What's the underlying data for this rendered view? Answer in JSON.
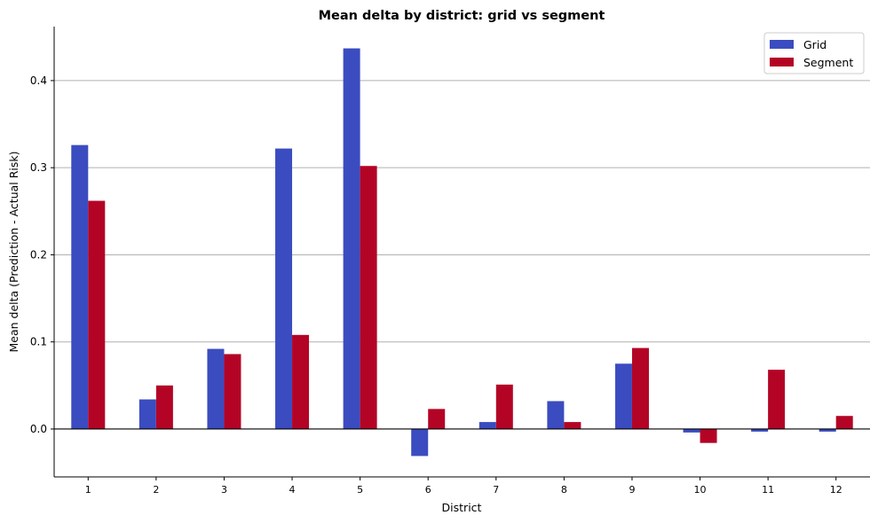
{
  "chart_data": {
    "type": "bar",
    "title": "Mean delta by district: grid vs segment",
    "xlabel": "District",
    "ylabel": "Mean delta (Prediction - Actual Risk)",
    "categories": [
      "1",
      "2",
      "3",
      "4",
      "5",
      "6",
      "7",
      "8",
      "9",
      "10",
      "11",
      "12"
    ],
    "series": [
      {
        "name": "Grid",
        "color": "#3b4cc0",
        "values": [
          0.326,
          0.034,
          0.092,
          0.322,
          0.437,
          -0.031,
          0.008,
          0.032,
          0.075,
          -0.004,
          -0.003,
          -0.003
        ]
      },
      {
        "name": "Segment",
        "color": "#b40426",
        "values": [
          0.262,
          0.05,
          0.086,
          0.108,
          0.302,
          0.023,
          0.051,
          0.008,
          0.093,
          -0.016,
          0.068,
          0.015
        ]
      }
    ],
    "ylim": [
      -0.055,
      0.462
    ],
    "yticks": [
      "0.0",
      "0.1",
      "0.2",
      "0.3",
      "0.4"
    ],
    "ytick_values": [
      0.0,
      0.1,
      0.2,
      0.3,
      0.4
    ],
    "grid": "horizontal",
    "legend": "top-right"
  }
}
